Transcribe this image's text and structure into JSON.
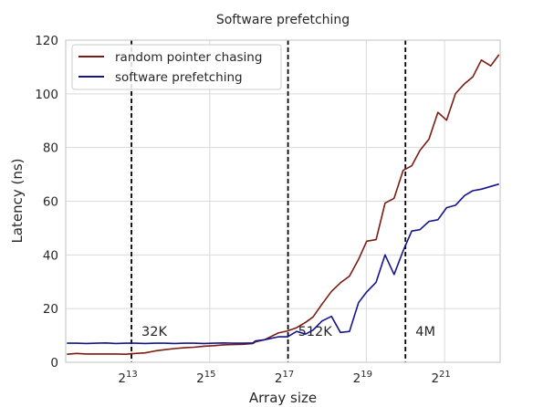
{
  "chart_data": {
    "type": "line",
    "title": "Software prefetching",
    "xlabel": "Array size",
    "ylabel": "Latency (ns)",
    "xscale": "log2",
    "xlim_log2": [
      11.32,
      22.42
    ],
    "ylim": [
      0,
      120
    ],
    "yticks": [
      0,
      20,
      40,
      60,
      80,
      100,
      120
    ],
    "xticks": [
      {
        "exp": 13,
        "base": "2",
        "sup": "13"
      },
      {
        "exp": 15,
        "base": "2",
        "sup": "15"
      },
      {
        "exp": 17,
        "base": "2",
        "sup": "17"
      },
      {
        "exp": 19,
        "base": "2",
        "sup": "19"
      },
      {
        "exp": 21,
        "base": "2",
        "sup": "21"
      }
    ],
    "grid": true,
    "legend_position": "top-left",
    "annotations": [
      {
        "x_log2": 13,
        "label": "32K"
      },
      {
        "x_log2": 17,
        "label": "512K"
      },
      {
        "x_log2": 20,
        "label": "4M"
      }
    ],
    "series": [
      {
        "name": "random pointer chasing",
        "color": "#7a1c12",
        "x_log2": [
          11.35,
          11.6,
          11.85,
          12.1,
          12.35,
          12.6,
          12.85,
          13.1,
          13.35,
          13.6,
          13.85,
          14.1,
          14.35,
          14.6,
          14.85,
          15.1,
          15.35,
          15.6,
          15.85,
          16.1,
          16.17,
          16.4,
          16.75,
          16.99,
          17.22,
          17.45,
          17.64,
          17.87,
          18.11,
          18.34,
          18.57,
          18.8,
          19.01,
          19.25,
          19.48,
          19.71,
          19.94,
          20.16,
          20.37,
          20.6,
          20.83,
          21.05,
          21.28,
          21.51,
          21.72,
          21.94,
          22.18,
          22.39
        ],
        "y": [
          3.0,
          3.3,
          3.1,
          3.1,
          3.1,
          3.1,
          3.0,
          3.3,
          3.5,
          4.2,
          4.7,
          5.1,
          5.4,
          5.6,
          6.0,
          6.2,
          6.5,
          6.6,
          6.7,
          7.0,
          7.6,
          8.4,
          10.9,
          11.7,
          12.9,
          14.9,
          16.9,
          21.7,
          26.4,
          29.6,
          32.1,
          38.3,
          45.1,
          45.7,
          59.3,
          61.1,
          71.5,
          73.2,
          78.9,
          83.1,
          93.1,
          90.2,
          100.1,
          103.8,
          106.3,
          112.6,
          110.4,
          114.6
        ]
      },
      {
        "name": "software prefetching",
        "color": "#15158c",
        "x_log2": [
          11.35,
          11.6,
          11.85,
          12.1,
          12.35,
          12.6,
          12.85,
          13.1,
          13.35,
          13.6,
          13.85,
          14.1,
          14.35,
          14.6,
          14.85,
          15.1,
          15.35,
          15.6,
          15.85,
          16.1,
          16.17,
          16.4,
          16.75,
          16.99,
          17.22,
          17.45,
          17.64,
          17.87,
          18.11,
          18.34,
          18.57,
          18.8,
          19.01,
          19.25,
          19.48,
          19.71,
          19.94,
          20.16,
          20.37,
          20.6,
          20.83,
          21.05,
          21.28,
          21.51,
          21.72,
          21.94,
          22.18,
          22.39
        ],
        "y": [
          7.1,
          7.1,
          7.0,
          7.1,
          7.2,
          7.0,
          7.1,
          7.1,
          7.0,
          7.1,
          7.1,
          7.0,
          7.1,
          7.1,
          7.0,
          7.1,
          7.2,
          7.1,
          7.1,
          7.2,
          8.0,
          8.4,
          9.5,
          9.5,
          11.5,
          10.5,
          12.0,
          15.4,
          17.1,
          11.1,
          11.5,
          22.2,
          26.2,
          29.8,
          40.0,
          32.7,
          41.5,
          48.9,
          49.4,
          52.5,
          53.1,
          57.6,
          58.5,
          62.1,
          63.9,
          64.5,
          65.5,
          66.4
        ]
      }
    ]
  }
}
